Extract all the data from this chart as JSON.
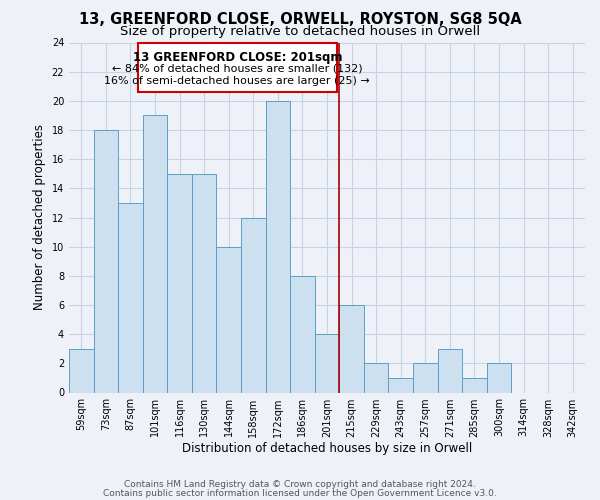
{
  "title": "13, GREENFORD CLOSE, ORWELL, ROYSTON, SG8 5QA",
  "subtitle": "Size of property relative to detached houses in Orwell",
  "xlabel": "Distribution of detached houses by size in Orwell",
  "ylabel": "Number of detached properties",
  "bar_color": "#cce0f0",
  "bar_edge_color": "#5b9fc8",
  "grid_color": "#c8d4e4",
  "background_color": "#eef2f8",
  "vline_color": "#aa0000",
  "annotation_title": "13 GREENFORD CLOSE: 201sqm",
  "annotation_line1": "← 84% of detached houses are smaller (132)",
  "annotation_line2": "16% of semi-detached houses are larger (25) →",
  "annotation_box_color": "#cc0000",
  "ylim": [
    0,
    24
  ],
  "yticks": [
    0,
    2,
    4,
    6,
    8,
    10,
    12,
    14,
    16,
    18,
    20,
    22,
    24
  ],
  "categories": [
    "59sqm",
    "73sqm",
    "87sqm",
    "101sqm",
    "116sqm",
    "130sqm",
    "144sqm",
    "158sqm",
    "172sqm",
    "186sqm",
    "201sqm",
    "215sqm",
    "229sqm",
    "243sqm",
    "257sqm",
    "271sqm",
    "285sqm",
    "300sqm",
    "314sqm",
    "328sqm",
    "342sqm"
  ],
  "values": [
    3,
    18,
    13,
    19,
    15,
    15,
    10,
    12,
    20,
    8,
    4,
    6,
    2,
    1,
    2,
    3,
    1,
    2,
    0,
    0,
    0
  ],
  "footer_line1": "Contains HM Land Registry data © Crown copyright and database right 2024.",
  "footer_line2": "Contains public sector information licensed under the Open Government Licence v3.0.",
  "title_fontsize": 10.5,
  "subtitle_fontsize": 9.5,
  "axis_label_fontsize": 8.5,
  "tick_fontsize": 7,
  "footer_fontsize": 6.5,
  "annotation_title_fontsize": 8.5,
  "annotation_text_fontsize": 8
}
